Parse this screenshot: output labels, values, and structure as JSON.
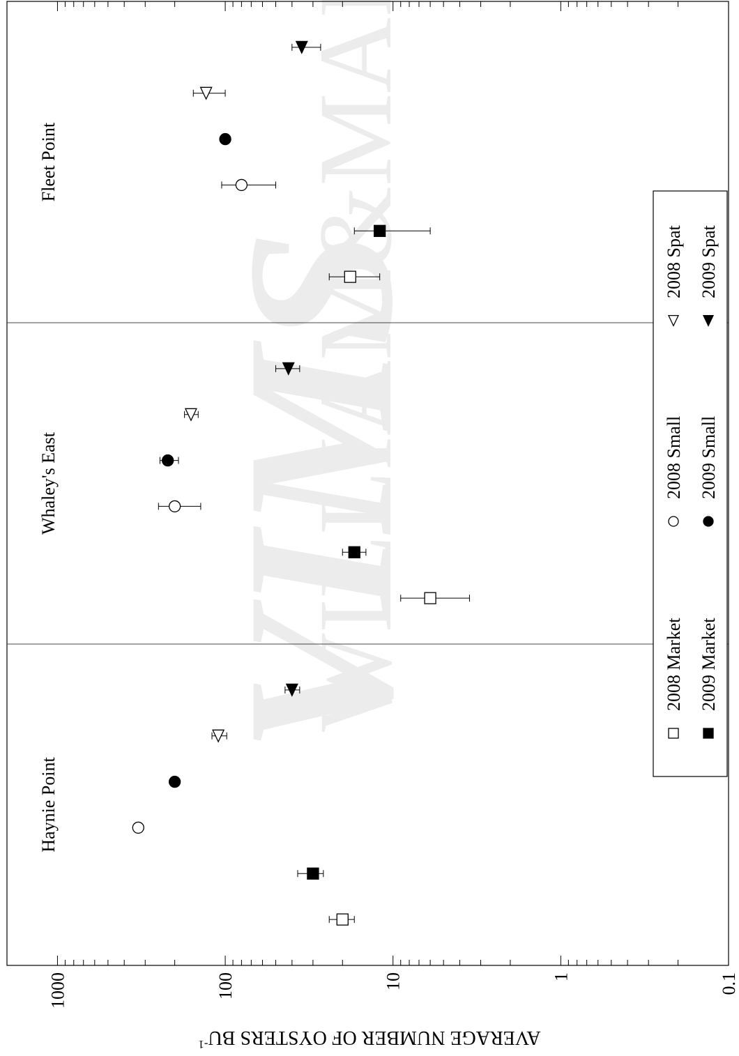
{
  "chart_data": {
    "type": "scatter",
    "orientation": "rotated-90-clockwise",
    "value_axis": {
      "label": "AVERAGE NUMBER OF OYSTERS BU",
      "label_superscript": "-1",
      "scale": "log",
      "range": [
        0.1,
        2000
      ],
      "ticks": [
        "1000",
        "100",
        "10",
        "1",
        "0.1"
      ],
      "tick_values": [
        1000,
        100,
        10,
        1,
        0.1
      ]
    },
    "grid": false,
    "legend_position": "bottom-right",
    "groups": [
      "Haynie Point",
      "Whaley's East",
      "Fleet Point"
    ],
    "series": [
      {
        "name": "2008 Market",
        "marker": "square-open",
        "values": [
          20,
          6,
          18
        ],
        "err_low": [
          17,
          3.5,
          12
        ],
        "err_high": [
          24,
          9,
          24
        ]
      },
      {
        "name": "2009 Market",
        "marker": "square-filled",
        "values": [
          30,
          17,
          12
        ],
        "err_low": [
          26,
          14.5,
          6
        ],
        "err_high": [
          37,
          20,
          17
        ]
      },
      {
        "name": "2008 Small",
        "marker": "circle-open",
        "values": [
          330,
          200,
          80
        ],
        "err_low": [
          330,
          140,
          50
        ],
        "err_high": [
          330,
          250,
          105
        ]
      },
      {
        "name": "2009 Small",
        "marker": "circle-filled",
        "values": [
          200,
          220,
          100
        ],
        "err_low": [
          200,
          190,
          100
        ],
        "err_high": [
          200,
          245,
          100
        ]
      },
      {
        "name": "2008 Spat",
        "marker": "triangle-open",
        "values": [
          110,
          160,
          130
        ],
        "err_low": [
          98,
          145,
          100
        ],
        "err_high": [
          120,
          175,
          155
        ]
      },
      {
        "name": "2009 Spat",
        "marker": "triangle-filled",
        "values": [
          40,
          42,
          35
        ],
        "err_low": [
          36,
          36,
          27
        ],
        "err_high": [
          44,
          50,
          40
        ]
      }
    ]
  }
}
